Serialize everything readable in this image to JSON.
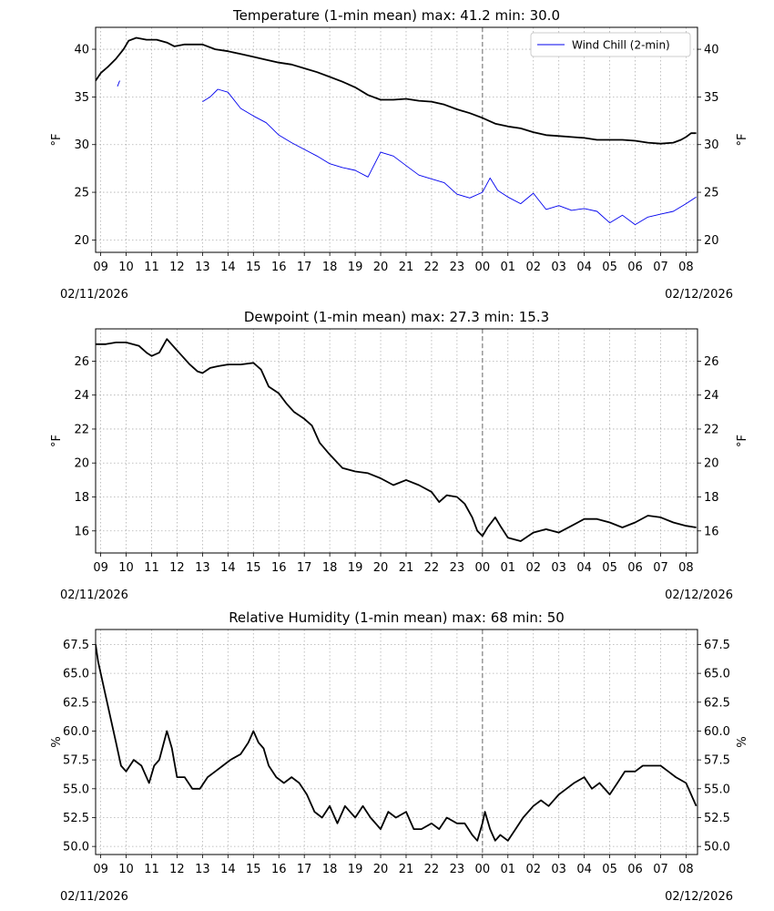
{
  "chart_data": [
    {
      "type": "line",
      "title": "Temperature (1-min mean)    max: 41.2  min: 30.0",
      "ylabel": "°F",
      "ylim": [
        18.7,
        42.3
      ],
      "yticks": [
        20,
        25,
        30,
        35,
        40
      ],
      "ytick_labels": [
        "20",
        "25",
        "30",
        "35",
        "40"
      ],
      "x_hours": [
        "09",
        "10",
        "11",
        "12",
        "13",
        "14",
        "15",
        "16",
        "17",
        "18",
        "19",
        "20",
        "21",
        "22",
        "23",
        "00",
        "01",
        "02",
        "03",
        "04",
        "05",
        "06",
        "07",
        "08"
      ],
      "date_left": "02/11/2026",
      "date_right": "02/12/2026",
      "legend": "Wind Chill (2-min)",
      "series": [
        {
          "name": "Temperature",
          "color": "#000000",
          "x": [
            8.8,
            9.0,
            9.3,
            9.6,
            9.9,
            10.1,
            10.4,
            10.8,
            11.2,
            11.6,
            11.9,
            12.3,
            12.7,
            13.0,
            13.5,
            14.0,
            14.5,
            15.0,
            15.5,
            16.0,
            16.5,
            17.0,
            17.5,
            18.0,
            18.5,
            19.0,
            19.5,
            20.0,
            20.5,
            21.0,
            21.5,
            22.0,
            22.5,
            23.0,
            23.5,
            24.0,
            24.5,
            25.0,
            25.5,
            26.0,
            26.5,
            27.0,
            27.5,
            28.0,
            28.5,
            29.0,
            29.5,
            30.0,
            30.5,
            31.0,
            31.5,
            31.8,
            32.0,
            32.2,
            32.4
          ],
          "values": [
            36.7,
            37.5,
            38.2,
            39.0,
            40.0,
            40.9,
            41.2,
            41.0,
            41.0,
            40.7,
            40.3,
            40.5,
            40.5,
            40.5,
            40.0,
            39.8,
            39.5,
            39.2,
            38.9,
            38.6,
            38.4,
            38.0,
            37.6,
            37.1,
            36.6,
            36.0,
            35.2,
            34.7,
            34.7,
            34.8,
            34.6,
            34.5,
            34.2,
            33.7,
            33.3,
            32.8,
            32.2,
            31.9,
            31.7,
            31.3,
            31.0,
            30.9,
            30.8,
            30.7,
            30.5,
            30.5,
            30.5,
            30.4,
            30.2,
            30.1,
            30.2,
            30.5,
            30.8,
            31.2,
            31.2
          ]
        },
        {
          "name": "Wind Chill (2-min)",
          "color": "#0000ee",
          "x": [
            9.66,
            9.7,
            9.73,
            9.75
          ],
          "values": [
            36.1,
            36.4,
            36.6,
            36.7
          ]
        },
        {
          "name": "Wind Chill (2-min)",
          "color": "#0000ee",
          "x": [
            13.0,
            13.3,
            13.6,
            14.0,
            14.5,
            15.0,
            15.5,
            16.0,
            16.5,
            17.0,
            17.5,
            18.0,
            18.5,
            19.0,
            19.5,
            20.0,
            20.5,
            21.0,
            21.5,
            22.0,
            22.5,
            23.0,
            23.5,
            24.0,
            24.3,
            24.6,
            25.0,
            25.5,
            26.0,
            26.5,
            27.0,
            27.5,
            28.0,
            28.5,
            29.0,
            29.5,
            30.0,
            30.5,
            31.0,
            31.5,
            32.0,
            32.4
          ],
          "values": [
            34.5,
            35.0,
            35.8,
            35.5,
            33.8,
            33.0,
            32.3,
            31.0,
            30.2,
            29.5,
            28.8,
            28.0,
            27.6,
            27.3,
            26.6,
            29.2,
            28.8,
            27.8,
            26.8,
            26.4,
            26.0,
            24.8,
            24.4,
            25.0,
            26.5,
            25.2,
            24.5,
            23.8,
            24.9,
            23.2,
            23.6,
            23.1,
            23.3,
            23.0,
            21.8,
            22.6,
            21.6,
            22.4,
            22.7,
            23.0,
            23.8,
            24.5
          ]
        }
      ]
    },
    {
      "type": "line",
      "title": "Dewpoint (1-min mean)    max: 27.3  min: 15.3",
      "ylabel": "°F",
      "ylim": [
        14.7,
        27.9
      ],
      "yticks": [
        16,
        18,
        20,
        22,
        24,
        26
      ],
      "ytick_labels": [
        "16",
        "18",
        "20",
        "22",
        "24",
        "26"
      ],
      "x_hours": [
        "09",
        "10",
        "11",
        "12",
        "13",
        "14",
        "15",
        "16",
        "17",
        "18",
        "19",
        "20",
        "21",
        "22",
        "23",
        "00",
        "01",
        "02",
        "03",
        "04",
        "05",
        "06",
        "07",
        "08"
      ],
      "date_left": "02/11/2026",
      "date_right": "02/12/2026",
      "series": [
        {
          "name": "Dewpoint",
          "color": "#000000",
          "x": [
            8.8,
            9.2,
            9.6,
            10.0,
            10.5,
            10.8,
            11.0,
            11.3,
            11.6,
            11.9,
            12.2,
            12.5,
            12.8,
            13.0,
            13.3,
            13.6,
            14.0,
            14.5,
            15.0,
            15.3,
            15.6,
            16.0,
            16.3,
            16.6,
            17.0,
            17.3,
            17.6,
            18.0,
            18.5,
            19.0,
            19.5,
            20.0,
            20.5,
            21.0,
            21.5,
            22.0,
            22.3,
            22.6,
            23.0,
            23.3,
            23.6,
            23.8,
            24.0,
            24.2,
            24.5,
            24.7,
            25.0,
            25.5,
            26.0,
            26.5,
            27.0,
            27.5,
            28.0,
            28.5,
            29.0,
            29.5,
            30.0,
            30.5,
            31.0,
            31.5,
            32.0,
            32.4
          ],
          "values": [
            27.0,
            27.0,
            27.1,
            27.1,
            26.9,
            26.5,
            26.3,
            26.5,
            27.3,
            26.8,
            26.3,
            25.8,
            25.4,
            25.3,
            25.6,
            25.7,
            25.8,
            25.8,
            25.9,
            25.5,
            24.5,
            24.1,
            23.5,
            23.0,
            22.6,
            22.2,
            21.2,
            20.5,
            19.7,
            19.5,
            19.4,
            19.1,
            18.7,
            19.0,
            18.7,
            18.3,
            17.7,
            18.1,
            18.0,
            17.6,
            16.8,
            16.0,
            15.7,
            16.2,
            16.8,
            16.3,
            15.6,
            15.4,
            15.9,
            16.1,
            15.9,
            16.3,
            16.7,
            16.7,
            16.5,
            16.2,
            16.5,
            16.9,
            16.8,
            16.5,
            16.3,
            16.2
          ]
        }
      ]
    },
    {
      "type": "line",
      "title": "Relative Humidity (1-min mean)    max: 68  min: 50",
      "ylabel": "%",
      "ylim": [
        49.3,
        68.8
      ],
      "yticks": [
        50.0,
        52.5,
        55.0,
        57.5,
        60.0,
        62.5,
        65.0,
        67.5
      ],
      "ytick_labels": [
        "50.0",
        "52.5",
        "55.0",
        "57.5",
        "60.0",
        "62.5",
        "65.0",
        "67.5"
      ],
      "x_hours": [
        "09",
        "10",
        "11",
        "12",
        "13",
        "14",
        "15",
        "16",
        "17",
        "18",
        "19",
        "20",
        "21",
        "22",
        "23",
        "00",
        "01",
        "02",
        "03",
        "04",
        "05",
        "06",
        "07",
        "08"
      ],
      "date_left": "02/11/2026",
      "date_right": "02/12/2026",
      "series": [
        {
          "name": "Relative Humidity",
          "color": "#000000",
          "x": [
            8.8,
            8.9,
            9.0,
            9.2,
            9.4,
            9.6,
            9.8,
            10.0,
            10.3,
            10.6,
            10.9,
            11.1,
            11.3,
            11.6,
            11.8,
            12.0,
            12.3,
            12.6,
            12.9,
            13.2,
            13.5,
            13.8,
            14.1,
            14.5,
            14.8,
            15.0,
            15.2,
            15.4,
            15.6,
            15.9,
            16.2,
            16.5,
            16.8,
            17.1,
            17.4,
            17.7,
            18.0,
            18.3,
            18.6,
            19.0,
            19.3,
            19.6,
            20.0,
            20.3,
            20.6,
            21.0,
            21.3,
            21.6,
            22.0,
            22.3,
            22.6,
            23.0,
            23.3,
            23.6,
            23.8,
            24.0,
            24.1,
            24.3,
            24.5,
            24.7,
            25.0,
            25.3,
            25.6,
            26.0,
            26.3,
            26.6,
            27.0,
            27.3,
            27.6,
            28.0,
            28.3,
            28.6,
            29.0,
            29.3,
            29.6,
            30.0,
            30.3,
            30.6,
            31.0,
            31.3,
            31.6,
            32.0,
            32.2,
            32.4
          ],
          "values": [
            67.5,
            66.0,
            65.0,
            63.0,
            61.0,
            59.0,
            57.0,
            56.5,
            57.5,
            57.0,
            55.5,
            57.0,
            57.5,
            60.0,
            58.5,
            56.0,
            56.0,
            55.0,
            55.0,
            56.0,
            56.5,
            57.0,
            57.5,
            58.0,
            59.0,
            60.0,
            59.0,
            58.5,
            57.0,
            56.0,
            55.5,
            56.0,
            55.5,
            54.5,
            53.0,
            52.5,
            53.5,
            52.0,
            53.5,
            52.5,
            53.5,
            52.5,
            51.5,
            53.0,
            52.5,
            53.0,
            51.5,
            51.5,
            52.0,
            51.5,
            52.5,
            52.0,
            52.0,
            51.0,
            50.5,
            52.0,
            53.0,
            51.5,
            50.5,
            51.0,
            50.5,
            51.5,
            52.5,
            53.5,
            54.0,
            53.5,
            54.5,
            55.0,
            55.5,
            56.0,
            55.0,
            55.5,
            54.5,
            55.5,
            56.5,
            56.5,
            57.0,
            57.0,
            57.0,
            56.5,
            56.0,
            55.5,
            54.5,
            53.5
          ]
        }
      ]
    }
  ]
}
